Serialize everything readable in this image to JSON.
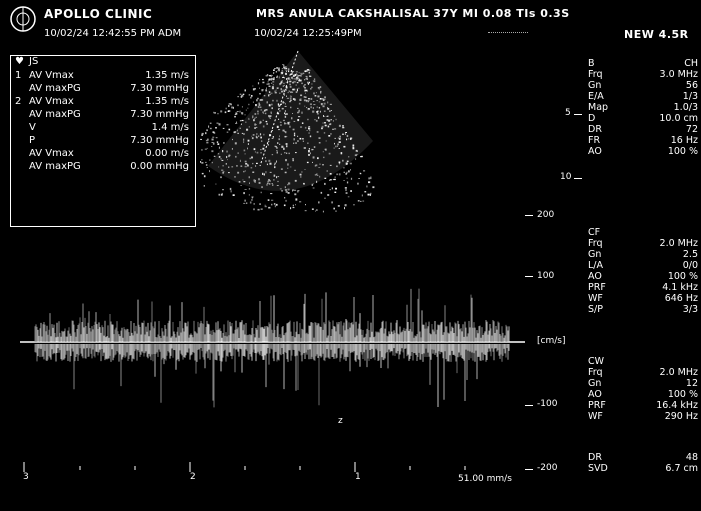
{
  "header": {
    "clinic": "APOLLO CLINIC",
    "patient": "MRS ANULA CAKSHALISAL 37Y MI 0.08 TIs 0.3S",
    "datetime": "10/02/24 12:42:55 PM ADM",
    "study_date": "10/02/24 12:25:49PM",
    "status": "NEW 4.5R"
  },
  "measurements": {
    "title": "JS",
    "rows": [
      {
        "num": "1",
        "label": "AV Vmax",
        "value": "1.35 m/s"
      },
      {
        "num": "",
        "label": "AV maxPG",
        "value": "7.30 mmHg"
      },
      {
        "num": "2",
        "label": "AV Vmax",
        "value": "1.35 m/s"
      },
      {
        "num": "",
        "label": "AV maxPG",
        "value": "7.30 mmHg"
      },
      {
        "num": "",
        "label": "V",
        "value": "1.4 m/s"
      },
      {
        "num": "",
        "label": "P",
        "value": "7.30 mmHg"
      },
      {
        "num": "",
        "label": "AV Vmax",
        "value": "0.00 m/s"
      },
      {
        "num": "",
        "label": "AV maxPG",
        "value": "0.00 mmHg"
      }
    ]
  },
  "b_mode": {
    "title": "B",
    "title_value": "CH",
    "params": [
      {
        "k": "Frq",
        "v": "3.0 MHz"
      },
      {
        "k": "Gn",
        "v": "56"
      },
      {
        "k": "E/A",
        "v": "1/3"
      },
      {
        "k": "Map",
        "v": "1.0/3"
      },
      {
        "k": "D",
        "v": "10.0 cm"
      },
      {
        "k": "DR",
        "v": "72"
      },
      {
        "k": "FR",
        "v": "16 Hz"
      },
      {
        "k": "AO",
        "v": "100 %"
      }
    ]
  },
  "cf_mode": {
    "title": "CF",
    "params": [
      {
        "k": "Frq",
        "v": "2.0 MHz"
      },
      {
        "k": "Gn",
        "v": "2.5"
      },
      {
        "k": "L/A",
        "v": "0/0"
      },
      {
        "k": "AO",
        "v": "100 %"
      },
      {
        "k": "PRF",
        "v": "4.1 kHz"
      },
      {
        "k": "WF",
        "v": "646 Hz"
      },
      {
        "k": "S/P",
        "v": "3/3"
      }
    ]
  },
  "cw_mode": {
    "title": "CW",
    "params": [
      {
        "k": "Frq",
        "v": "2.0 MHz"
      },
      {
        "k": "Gn",
        "v": "12"
      },
      {
        "k": "AO",
        "v": "100 %"
      },
      {
        "k": "PRF",
        "v": "16.4 kHz"
      },
      {
        "k": "WF",
        "v": "290 Hz"
      }
    ]
  },
  "bottom_params": [
    {
      "k": "DR",
      "v": "48"
    },
    {
      "k": "SVD",
      "v": "6.7 cm"
    }
  ],
  "doppler_scale": {
    "labels": [
      "200",
      "100",
      "[cm/s]",
      "-100",
      "-200"
    ],
    "sweep_speed": "51.00 mm/s"
  },
  "image_scale": {
    "labels": [
      "5",
      "10"
    ]
  },
  "time_marks": [
    "3",
    "2",
    "1"
  ],
  "marker": "z"
}
